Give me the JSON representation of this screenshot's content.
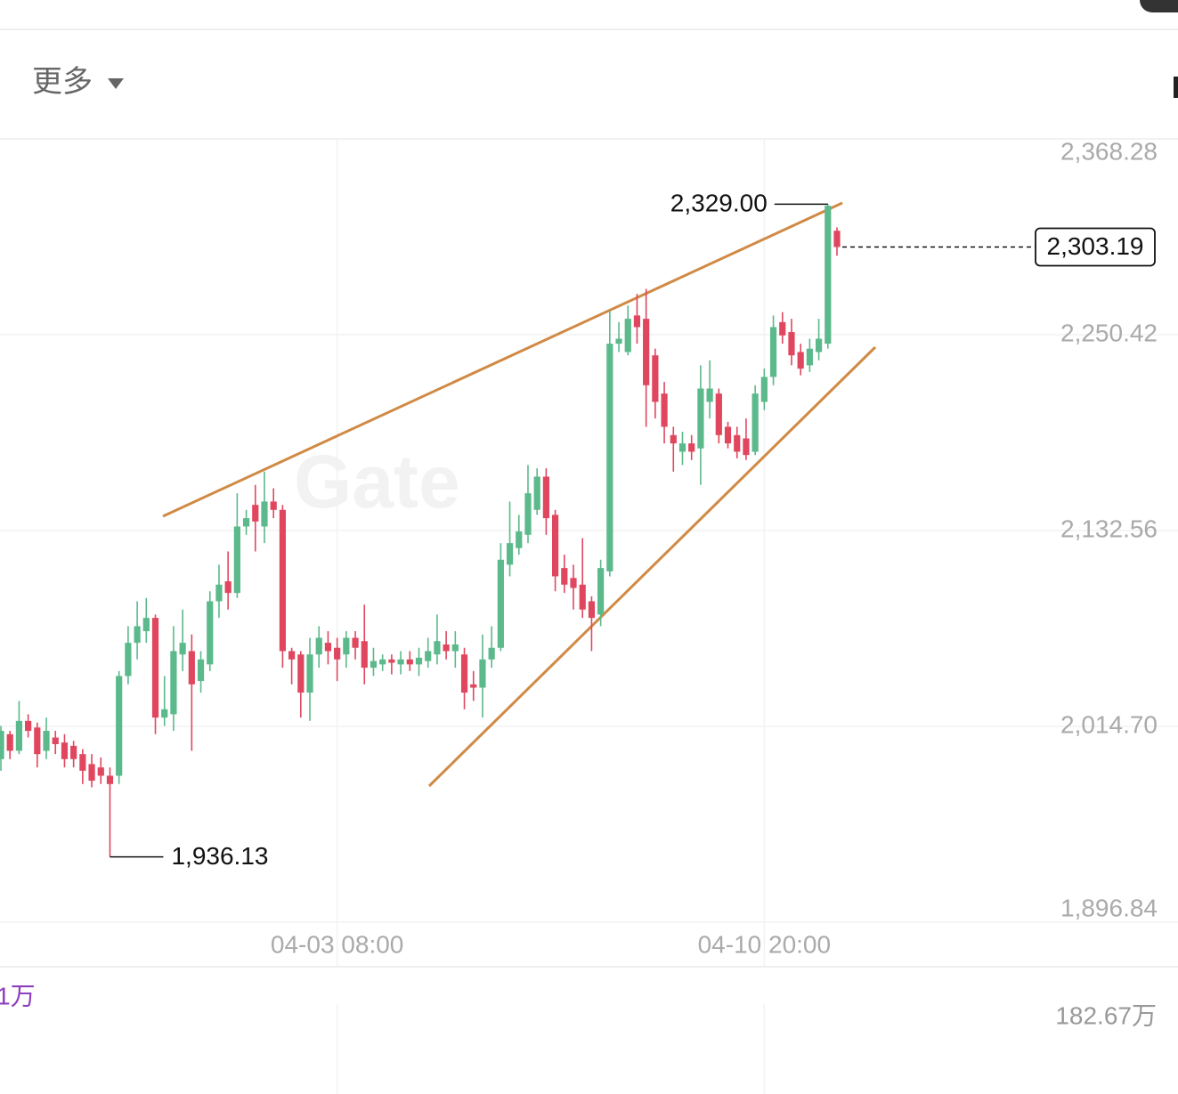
{
  "header": {
    "menu": "更多"
  },
  "chart_data": {
    "type": "candlestick",
    "watermark": "Gate",
    "categories": [
      null,
      null,
      null,
      null,
      null,
      null,
      null,
      null,
      null,
      null,
      null,
      null,
      null,
      null,
      null,
      null,
      null,
      null,
      null,
      null,
      null,
      null,
      null,
      null,
      null,
      null,
      null,
      null,
      null,
      null,
      null,
      null,
      null,
      null,
      null,
      null,
      null,
      "04-03 08:00",
      null,
      null,
      null,
      null,
      null,
      null,
      null,
      null,
      null,
      null,
      null,
      null,
      null,
      null,
      null,
      null,
      null,
      null,
      null,
      null,
      null,
      null,
      null,
      null,
      null,
      null,
      null,
      null,
      null,
      null,
      null,
      null,
      null,
      null,
      null,
      null,
      null,
      null,
      null,
      null,
      null,
      null,
      null,
      null,
      null,
      null,
      "04-10 20:00",
      null,
      null,
      null,
      null,
      null,
      null,
      null,
      null
    ],
    "open": [
      1995,
      2010,
      2000,
      2018,
      2014,
      2000,
      2008,
      2005,
      2003,
      1998,
      1992,
      1990,
      1985,
      1985,
      2045,
      2065,
      2072,
      2080,
      2020,
      2022,
      2058,
      2060,
      2042,
      2052,
      2090,
      2102,
      2095,
      2135,
      2148,
      2135,
      2150,
      2145,
      2060,
      2058,
      2035,
      2058,
      2065,
      2062,
      2058,
      2068,
      2066,
      2050,
      2052,
      2055,
      2052,
      2055,
      2052,
      2054,
      2058,
      2064,
      2060,
      2058,
      2040,
      2038,
      2055,
      2062,
      2112,
      2122,
      2130,
      2145,
      2165,
      2142,
      2110,
      2104,
      2100,
      2090,
      2082,
      2108,
      2245,
      2240,
      2262,
      2260,
      2238,
      2215,
      2190,
      2180,
      2185,
      2182,
      2210,
      2215,
      2195,
      2190,
      2188,
      2180,
      2210,
      2225,
      2258,
      2252,
      2240,
      2232,
      2240,
      2245,
      2313
    ],
    "high": [
      2015,
      2012,
      2030,
      2022,
      2017,
      2020,
      2012,
      2010,
      2006,
      2001,
      1998,
      1996,
      1990,
      2048,
      2075,
      2090,
      2092,
      2082,
      2045,
      2075,
      2085,
      2070,
      2060,
      2096,
      2112,
      2120,
      2155,
      2145,
      2160,
      2168,
      2158,
      2148,
      2062,
      2060,
      2068,
      2075,
      2072,
      2068,
      2072,
      2072,
      2088,
      2062,
      2058,
      2058,
      2060,
      2060,
      2062,
      2068,
      2082,
      2072,
      2072,
      2062,
      2048,
      2070,
      2075,
      2125,
      2150,
      2142,
      2172,
      2170,
      2170,
      2145,
      2118,
      2112,
      2128,
      2093,
      2115,
      2265,
      2258,
      2268,
      2275,
      2278,
      2242,
      2222,
      2195,
      2192,
      2190,
      2232,
      2235,
      2218,
      2198,
      2195,
      2200,
      2220,
      2230,
      2262,
      2264,
      2260,
      2245,
      2248,
      2260,
      2329,
      2315
    ],
    "low": [
      1988,
      1995,
      1998,
      2008,
      1990,
      1995,
      1998,
      1990,
      1990,
      1980,
      1978,
      1980,
      1936.13,
      1980,
      2040,
      2055,
      2065,
      2010,
      2015,
      2012,
      2048,
      2000,
      2035,
      2048,
      2080,
      2085,
      2092,
      2130,
      2120,
      2125,
      2140,
      2050,
      2040,
      2020,
      2018,
      2050,
      2052,
      2042,
      2050,
      2055,
      2040,
      2045,
      2048,
      2046,
      2046,
      2048,
      2045,
      2050,
      2052,
      2055,
      2050,
      2025,
      2030,
      2020,
      2050,
      2060,
      2105,
      2118,
      2125,
      2142,
      2130,
      2096,
      2095,
      2085,
      2080,
      2060,
      2075,
      2105,
      2240,
      2238,
      2245,
      2195,
      2200,
      2185,
      2168,
      2172,
      2175,
      2160,
      2200,
      2185,
      2182,
      2176,
      2175,
      2178,
      2205,
      2220,
      2245,
      2232,
      2226,
      2228,
      2235,
      2242,
      2298
    ],
    "close": [
      2012,
      2000,
      2018,
      2012,
      1998,
      2012,
      2004,
      1995,
      1995,
      1988,
      1982,
      1985,
      1980,
      2045,
      2065,
      2075,
      2080,
      2020,
      2025,
      2060,
      2065,
      2040,
      2055,
      2090,
      2100,
      2095,
      2135,
      2140,
      2138,
      2150,
      2145,
      2060,
      2055,
      2035,
      2058,
      2068,
      2060,
      2055,
      2068,
      2062,
      2050,
      2054,
      2055,
      2053,
      2055,
      2052,
      2056,
      2060,
      2066,
      2060,
      2064,
      2035,
      2038,
      2055,
      2062,
      2115,
      2125,
      2132,
      2155,
      2165,
      2140,
      2105,
      2100,
      2098,
      2085,
      2080,
      2110,
      2245,
      2248,
      2260,
      2255,
      2220,
      2210,
      2195,
      2185,
      2185,
      2180,
      2218,
      2218,
      2190,
      2185,
      2180,
      2178,
      2215,
      2225,
      2255,
      2250,
      2238,
      2230,
      2242,
      2248,
      2328,
      2303.19
    ],
    "up_color": "#5bb98b",
    "down_color": "#e0475f",
    "ylim": [
      1870.6,
      2368.28
    ],
    "yticks": [
      {
        "value": 1896.84,
        "label": "1,896.84"
      },
      {
        "value": 2014.7,
        "label": "2,014.70"
      },
      {
        "value": 2132.56,
        "label": "2,132.56"
      },
      {
        "value": 2250.42,
        "label": "2,250.42"
      },
      {
        "value": 2368.28,
        "label": "2,368.28"
      }
    ],
    "high_label": {
      "value": 2329.0,
      "label": "2,329.00"
    },
    "low_label": {
      "value": 1936.13,
      "label": "1,936.13"
    },
    "last_price": {
      "value": 2303.19,
      "label": "2,303.19"
    },
    "grid": true,
    "volume_max_label": "182.67万",
    "volume_indicator": "1万"
  }
}
